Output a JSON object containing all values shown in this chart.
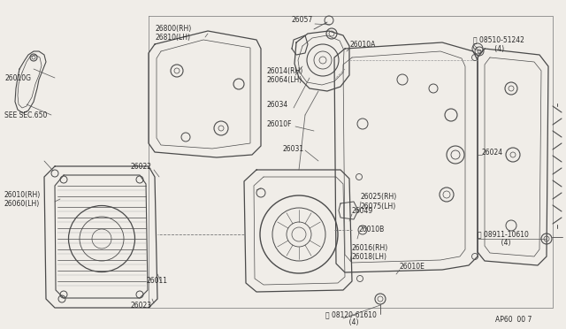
{
  "bg_color": "#f0ede8",
  "line_color": "#4a4a4a",
  "text_color": "#2a2a2a",
  "fig_width": 6.4,
  "fig_height": 3.72,
  "dpi": 100,
  "lw_main": 1.0,
  "lw_thin": 0.6,
  "lw_leader": 0.5,
  "parts": {
    "left_arm_label": "26010G",
    "see_sec": "SEE SEC.650",
    "bracket_rh": "26800(RH)",
    "bracket_lh": "26810(LH)",
    "motor_rh": "26014(RH)",
    "motor_lh": "26064(LH)",
    "part_26057": "26057",
    "part_26010A": "26010A",
    "bolt_s": "S 08510-51242",
    "bolt_s2": "    (4)",
    "part_26034": "26034",
    "part_26010F": "26010F",
    "part_26031": "26031",
    "part_26024": "26024",
    "part_26022": "26022",
    "part_26049": "26049",
    "part_26025rh": "26025(RH)",
    "part_26075lh": "26075(LH)",
    "part_26010B": "26010B",
    "part_26016rh": "26016(RH)",
    "part_26018lh": "26018(LH)",
    "part_26010rh": "26010(RH)",
    "part_26060lh": "26060(LH)",
    "part_26011": "26011",
    "part_26023": "26023",
    "part_26010E": "26010E",
    "bolt_n": "N 08911-10610",
    "bolt_n2": "    (4)",
    "bolt_b": "B 08120-61610",
    "bolt_b2": "    (4)",
    "ref": "AP60  00 7"
  }
}
